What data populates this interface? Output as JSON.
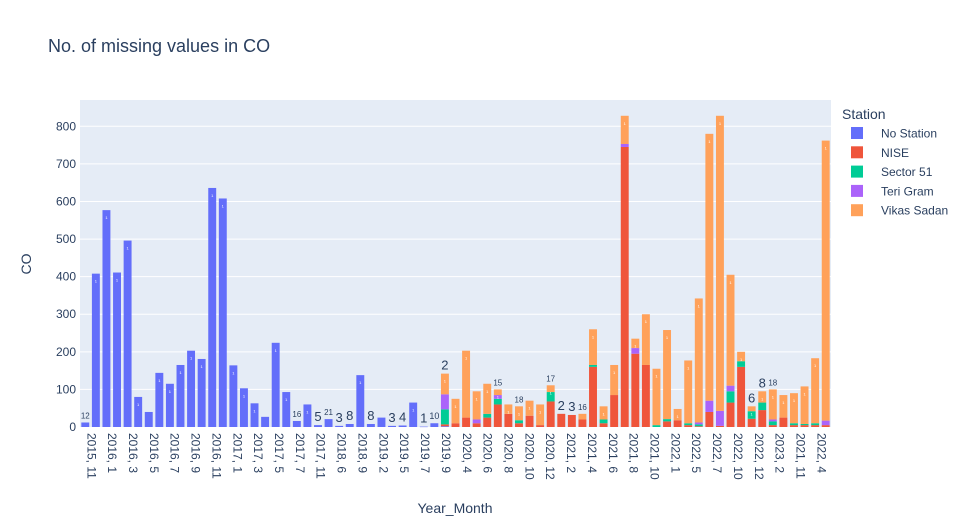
{
  "chart_data": {
    "type": "bar",
    "barmode": "stack",
    "title": "No. of missing values in CO",
    "xlabel": "Year_Month",
    "ylabel": "CO",
    "ylim": [
      0,
      870
    ],
    "yticks": [
      0,
      100,
      200,
      300,
      400,
      500,
      600,
      700,
      800
    ],
    "grid": true,
    "legend_title": "Station",
    "legend_position": "right",
    "categories": [
      "2015, 11",
      "2016, 1",
      "2016, 2",
      "2016, 3",
      "2016, 4",
      "2016, 5",
      "2016, 6",
      "2016, 7",
      "2016, 8",
      "2016, 9",
      "2016, 10",
      "2016, 11",
      "2016, 12",
      "2017, 1",
      "2017, 2",
      "2017, 3",
      "2017, 4",
      "2017, 5",
      "2017, 6",
      "2017, 7",
      "2017, 8",
      "2017, 11",
      "2017, 12",
      "2018, 6",
      "2018, 7",
      "2018, 9",
      "2018, 10",
      "2019, 2",
      "2019, 3",
      "2019, 5",
      "2019, 6",
      "2019, 7",
      "2019, 8",
      "2019, 9",
      "2020, 3",
      "2020, 4",
      "2020, 5",
      "2020, 6",
      "2020, 7",
      "2020, 8",
      "2020, 9",
      "2020, 10",
      "2020, 11",
      "2020, 12",
      "2021, 1",
      "2021, 2",
      "2021, 3",
      "2021, 4",
      "2021, 5",
      "2021, 6",
      "2021, 7",
      "2021, 8",
      "2021, 9",
      "2021, 10",
      "2021, 11",
      "2022, 1",
      "2022, 2",
      "2022, 5",
      "2022, 6",
      "2022, 7",
      "2022, 8",
      "2022, 10",
      "2022, 11",
      "2022, 12",
      "2023, 1",
      "2023, 2",
      "2023, 3",
      "2021, 11",
      "2022, 1",
      "2022, 4",
      "2022, 5"
    ],
    "tick_labels": [
      "2015, 11",
      "2016, 1",
      "2016, 3",
      "2016, 5",
      "2016, 7",
      "2016, 9",
      "2016, 11",
      "2017, 1",
      "2017, 3",
      "2017, 5",
      "2017, 7",
      "2017, 11",
      "2018, 6",
      "2018, 9",
      "2019, 2",
      "2019, 5",
      "2019, 7",
      "2019, 9",
      "2020, 4",
      "2020, 6",
      "2020, 8",
      "2020, 10",
      "2020, 12",
      "2021, 2",
      "2021, 4",
      "2021, 6",
      "2021, 8",
      "2021, 10",
      "2022, 1",
      "2022, 5",
      "2022, 7",
      "2022, 10",
      "2022, 12",
      "2023, 2",
      "2021, 11",
      "2022, 4"
    ],
    "series": [
      {
        "name": "No Station",
        "color": "#636efa",
        "values": [
          12,
          408,
          577,
          411,
          496,
          80,
          40,
          144,
          115,
          165,
          203,
          181,
          636,
          608,
          164,
          103,
          63,
          27,
          224,
          93,
          16,
          60,
          5,
          21,
          3,
          8,
          138,
          8,
          25,
          3,
          4,
          65,
          1,
          10,
          2,
          0,
          0,
          0,
          0,
          0,
          0,
          0,
          0,
          0,
          0,
          0,
          0,
          0,
          0,
          0,
          0,
          0,
          0,
          0,
          0,
          0,
          0,
          0,
          0,
          0,
          0,
          0,
          0,
          0,
          0,
          0,
          0,
          0,
          0,
          0,
          0
        ]
      },
      {
        "name": "NISE",
        "color": "#ef553b",
        "values": [
          0,
          0,
          0,
          0,
          0,
          0,
          0,
          0,
          0,
          0,
          0,
          0,
          0,
          0,
          0,
          0,
          0,
          0,
          0,
          0,
          0,
          0,
          0,
          0,
          0,
          0,
          0,
          0,
          0,
          0,
          0,
          0,
          0,
          0,
          5,
          10,
          25,
          10,
          25,
          60,
          35,
          10,
          30,
          5,
          68,
          35,
          32,
          20,
          160,
          10,
          85,
          745,
          195,
          165,
          0,
          15,
          18,
          5,
          2,
          40,
          3,
          65,
          160,
          22,
          45,
          5,
          25,
          5,
          5,
          5,
          5
        ]
      },
      {
        "name": "Sector 51",
        "color": "#00cc96",
        "values": [
          0,
          0,
          0,
          0,
          0,
          0,
          0,
          0,
          0,
          0,
          0,
          0,
          0,
          0,
          0,
          0,
          0,
          0,
          0,
          0,
          0,
          0,
          0,
          0,
          0,
          0,
          0,
          0,
          0,
          0,
          0,
          0,
          0,
          0,
          40,
          0,
          0,
          0,
          10,
          15,
          0,
          8,
          0,
          0,
          25,
          0,
          0,
          0,
          5,
          10,
          0,
          0,
          0,
          0,
          5,
          6,
          0,
          5,
          5,
          0,
          0,
          30,
          15,
          20,
          20,
          10,
          0,
          5,
          3,
          5,
          0
        ]
      },
      {
        "name": "Teri Gram",
        "color": "#ab63fa",
        "values": [
          0,
          0,
          0,
          0,
          0,
          0,
          0,
          0,
          0,
          0,
          0,
          0,
          0,
          0,
          0,
          0,
          0,
          0,
          0,
          0,
          0,
          0,
          0,
          0,
          0,
          0,
          0,
          0,
          0,
          0,
          0,
          0,
          0,
          0,
          40,
          0,
          0,
          10,
          0,
          10,
          0,
          0,
          0,
          0,
          0,
          0,
          0,
          0,
          0,
          0,
          0,
          8,
          15,
          0,
          0,
          0,
          0,
          0,
          5,
          30,
          40,
          15,
          0,
          0,
          0,
          5,
          0,
          0,
          0,
          0,
          12
        ]
      },
      {
        "name": "Vikas Sadan",
        "color": "#ffa15a",
        "values": [
          0,
          0,
          0,
          0,
          0,
          0,
          0,
          0,
          0,
          0,
          0,
          0,
          0,
          0,
          0,
          0,
          0,
          0,
          0,
          0,
          0,
          0,
          0,
          0,
          0,
          0,
          0,
          0,
          0,
          0,
          0,
          0,
          0,
          0,
          55,
          65,
          178,
          75,
          80,
          15,
          25,
          37,
          40,
          55,
          18,
          0,
          0,
          15,
          95,
          35,
          80,
          75,
          25,
          135,
          150,
          237,
          30,
          167,
          330,
          710,
          785,
          295,
          25,
          13,
          30,
          80,
          60,
          80,
          100,
          173,
          745
        ]
      }
    ],
    "annotations": [
      "12",
      "16",
      "21",
      "5",
      "3",
      "8",
      "8",
      "3",
      "4",
      "1",
      "10",
      "2",
      "15",
      "18",
      "17",
      "2",
      "3",
      "16",
      "6",
      "8",
      "18"
    ],
    "small_labels": [
      {
        "text": "12",
        "i": 0
      },
      {
        "text": "16",
        "i": 20
      },
      {
        "text": "21",
        "i": 23
      },
      {
        "text": "15",
        "i": 39
      },
      {
        "text": "18",
        "i": 41
      },
      {
        "text": "17",
        "i": 44
      },
      {
        "text": "16",
        "i": 47
      },
      {
        "text": "18",
        "i": 65
      }
    ],
    "large_labels": [
      {
        "text": "5",
        "i": 22
      },
      {
        "text": "3",
        "i": 24
      },
      {
        "text": "8",
        "i": 25
      },
      {
        "text": "8",
        "i": 27
      },
      {
        "text": "3",
        "i": 29
      },
      {
        "text": "4",
        "i": 30
      },
      {
        "text": "1",
        "i": 32
      },
      {
        "text": "10",
        "i": 33,
        "small": true
      },
      {
        "text": "2",
        "i": 34
      },
      {
        "text": "2",
        "i": 45
      },
      {
        "text": "3",
        "i": 46
      },
      {
        "text": "6",
        "i": 63
      },
      {
        "text": "8",
        "i": 64
      }
    ]
  }
}
